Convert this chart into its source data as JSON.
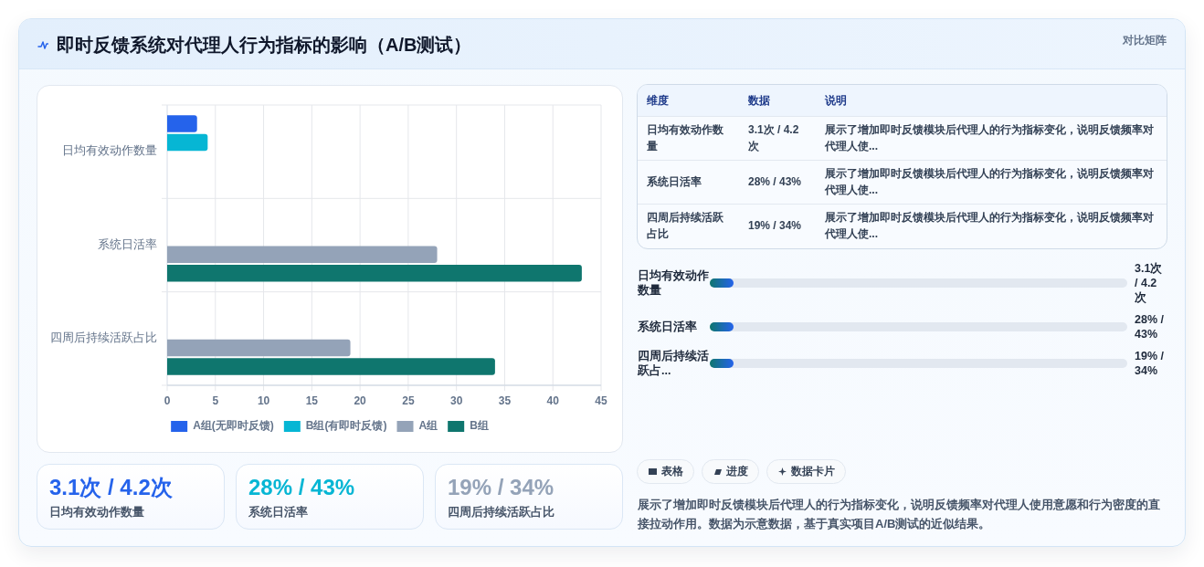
{
  "chart_data": [
    {
      "type": "bar",
      "orientation": "horizontal",
      "title": "即时反馈系统对代理人行为指标的影响（A/B测试）",
      "annotations": [
        "对比矩阵"
      ],
      "categories": [
        "日均有效动作数量",
        "系统日活率",
        "四周后持续活跃占比"
      ],
      "series": [
        {
          "name": "A组(无即时反馈)",
          "color": "#2563eb",
          "values": [
            3.1,
            null,
            null
          ]
        },
        {
          "name": "B组(有即时反馈)",
          "color": "#06b6d4",
          "values": [
            4.2,
            null,
            null
          ]
        },
        {
          "name": "A组",
          "color": "#94a3b8",
          "values": [
            null,
            28,
            19
          ]
        },
        {
          "name": "B组",
          "color": "#0f766e",
          "values": [
            null,
            43,
            34
          ]
        }
      ],
      "xlim": [
        0,
        45
      ],
      "xticks": [
        0,
        5,
        10,
        15,
        20,
        25,
        30,
        35,
        40,
        45
      ],
      "grid": true,
      "legend": "bottom"
    },
    {
      "type": "other",
      "annotations": [
        "维度",
        "数据",
        "说明",
        "日均有效动作数量",
        "3.1次 / 4.2次",
        "展示了增加即时反馈模块后代理人的行为指标变化，说明反馈频率对代理人使...",
        "系统日活率",
        "28% / 43%",
        "展示了增加即时反馈模块后代理人的行为指标变化，说明反馈频率对代理人使...",
        "四周后持续活跃占比",
        "19% / 34%",
        "展示了增加即时反馈模块后代理人的行为指标变化，说明反馈频率对代理人使..."
      ]
    },
    {
      "type": "other",
      "annotations": [
        "日均有效动作数量",
        "3.1次 / 4.2次",
        "系统日活率",
        "28% / 43%",
        "四周后持续活跃占...",
        "19% / 34%"
      ]
    },
    {
      "type": "other",
      "annotations": [
        "3.1次 / 4.2次",
        "日均有效动作数量",
        "28% / 43%",
        "系统日活率",
        "19% / 34%",
        "四周后持续活跃占比"
      ]
    },
    {
      "type": "other",
      "annotations": [
        "表格",
        "进度",
        "数据卡片",
        "展示了增加即时反馈模块后代理人的行为指标变化，说明反馈频率对代理人使用意愿和行为密度的直接拉动作用。数据为示意数据，基于真实项目A/B测试的近似结果。"
      ]
    }
  ]
}
